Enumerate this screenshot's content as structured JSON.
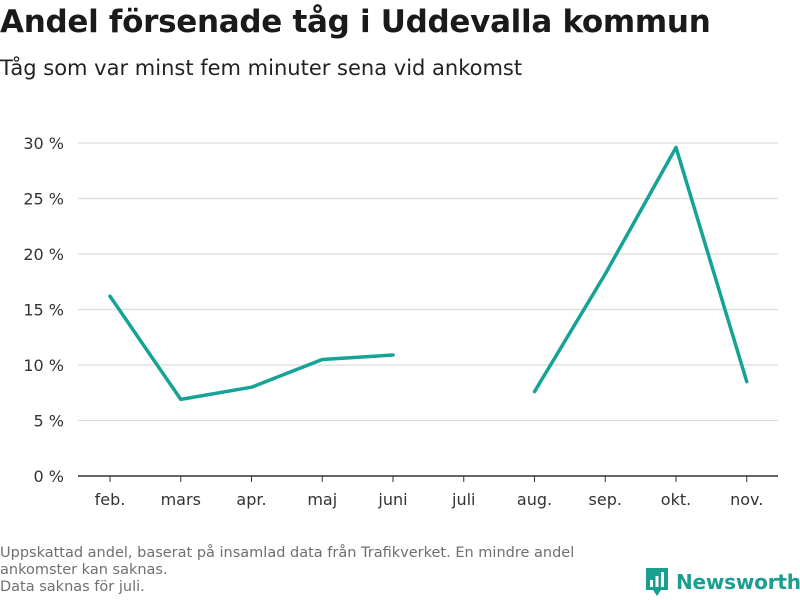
{
  "title": "Andel försenade tåg i Uddevalla kommun",
  "subtitle": "Tåg som var minst fem minuter sena vid ankomst",
  "footer": {
    "line1": "Uppskattad andel, baserat på insamlad data från Trafikverket. En mindre andel",
    "line2": "ankomster kan saknas.",
    "line3": "Data saknas för juli."
  },
  "brand": {
    "name": "Newsworthy",
    "color": "#1a9e8f",
    "icon": "bar-chart-logo-icon"
  },
  "chart_data": {
    "type": "line",
    "categories": [
      "feb.",
      "mars",
      "apr.",
      "maj",
      "juni",
      "juli",
      "aug.",
      "sep.",
      "okt.",
      "nov."
    ],
    "series": [
      {
        "values": [
          16.2,
          6.9,
          8.0,
          10.5,
          10.9,
          null,
          7.6,
          18.2,
          29.6,
          8.5
        ]
      }
    ],
    "y_ticks": [
      0,
      5,
      10,
      15,
      20,
      25,
      30
    ],
    "y_tick_labels": [
      "0 %",
      "5 %",
      "10 %",
      "15 %",
      "20 %",
      "25 %",
      "30 %"
    ],
    "ylim": [
      0,
      30
    ],
    "grid": true,
    "line_color": "#14a396"
  }
}
